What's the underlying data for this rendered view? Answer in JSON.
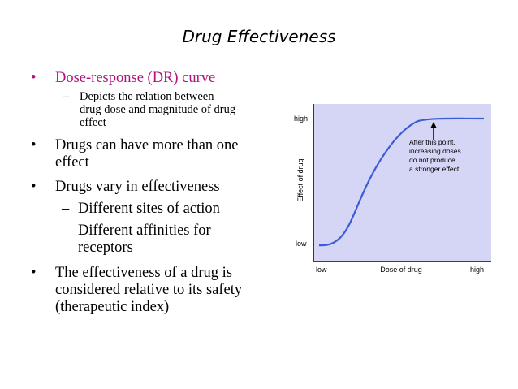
{
  "slide": {
    "title": "Drug Effectiveness",
    "bullets": [
      {
        "text": "Dose-response (DR) curve",
        "sub": [
          "Depicts the relation between",
          "drug dose and magnitude of drug",
          "effect"
        ]
      },
      {
        "lines": [
          "Drugs can have more than one",
          "effect"
        ]
      },
      {
        "text": "Drugs vary in effectiveness",
        "subs": [
          {
            "lines": [
              "Different sites of action"
            ]
          },
          {
            "lines": [
              "Different affinities for",
              "receptors"
            ]
          }
        ]
      },
      {
        "lines": [
          "The effectiveness of a drug is",
          "considered relative to its safety",
          "(therapeutic index)"
        ]
      }
    ]
  },
  "figure": {
    "y_axis_label": "Effect of drug",
    "y_high": "high",
    "y_low": "low",
    "x_axis_label": "Dose of drug",
    "x_low": "low",
    "x_high": "high",
    "annotation": [
      "After this point,",
      "increasing doses",
      "do not produce",
      "a stronger effect"
    ],
    "bg_color": "#d5d5f6",
    "curve_color": "#3b5bd8",
    "accent_color": "#b0147a"
  }
}
